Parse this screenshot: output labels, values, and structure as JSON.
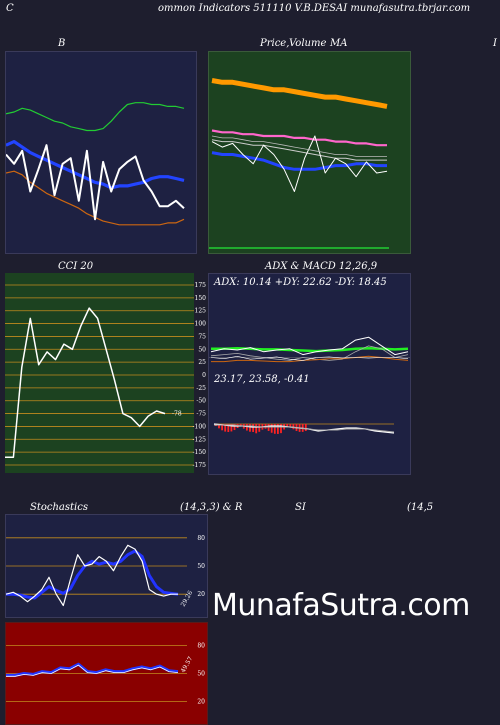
{
  "header": {
    "left_char": "C",
    "title": "ommon  Indicators 511110  V.B.DESAI munafasutra.tbrjar.com"
  },
  "panels": {
    "bb": {
      "title": "B"
    },
    "price": {
      "title_a": "Price,",
      "title_b": "Volume",
      "title_c": "MA",
      "right_edge": "I"
    },
    "cci": {
      "title": "CCI 20",
      "value_label": "-78"
    },
    "adx": {
      "title": "ADX  & MACD 12,26,9",
      "adx_text": "ADX: 10.14  +DY: 22.62  -DY: 18.45",
      "macd_text": "23.17,  23.58,  -0.41"
    },
    "stoch": {
      "title_a": "Stochastics",
      "title_b": "(14,3,3) & R",
      "title_c": "SI",
      "title_d": "(14,5",
      "value_label": "29.26"
    },
    "rsi": {
      "value_label": "49.57"
    }
  },
  "brand": {
    "text": "MunafaSutra.com"
  },
  "chart_data": [
    {
      "id": "bollinger",
      "type": "line",
      "ylim": [
        0,
        100
      ],
      "series": [
        {
          "values": [
            72,
            73,
            75,
            74,
            72,
            70,
            68,
            67,
            65,
            64,
            63,
            63,
            64,
            68,
            73,
            77,
            78,
            78,
            77,
            77,
            76,
            76,
            75
          ]
        },
        {
          "values": [
            55,
            57,
            54,
            51,
            49,
            47,
            45,
            43,
            41,
            39,
            37,
            35,
            34,
            32,
            33,
            33,
            34,
            35,
            37,
            38,
            38,
            37,
            36
          ]
        },
        {
          "values": [
            40,
            41,
            39,
            35,
            32,
            29,
            27,
            25,
            23,
            21,
            18,
            16,
            14,
            13,
            12,
            12,
            12,
            12,
            12,
            12,
            13,
            13,
            15
          ]
        },
        {
          "values": [
            50,
            45,
            52,
            30,
            42,
            55,
            28,
            45,
            48,
            25,
            52,
            15,
            46,
            30,
            42,
            46,
            49,
            36,
            30,
            22,
            22,
            25,
            21
          ]
        }
      ]
    },
    {
      "id": "price_volume_ma",
      "type": "line",
      "ylim": [
        0,
        100
      ],
      "series": [
        {
          "values": [
            90,
            89,
            89,
            88,
            87,
            86,
            85,
            85,
            84,
            83,
            82,
            81,
            81,
            80,
            79,
            78,
            77,
            76
          ]
        },
        {
          "values": [
            63,
            62,
            62,
            61,
            61,
            60,
            60,
            60,
            59,
            59,
            58,
            58,
            57,
            57,
            56,
            56,
            55,
            55
          ]
        },
        {
          "values": [
            58,
            57,
            57,
            56,
            55,
            55,
            54,
            53,
            52,
            51,
            50,
            49,
            48,
            48,
            47,
            47,
            47,
            47
          ]
        },
        {
          "values": [
            51,
            50,
            50,
            49,
            48,
            47,
            45,
            43,
            42,
            42,
            42,
            43,
            44,
            44,
            45,
            45,
            44,
            44
          ]
        },
        {
          "values": [
            57,
            54,
            56,
            50,
            45,
            55,
            50,
            42,
            30,
            48,
            60,
            40,
            48,
            45,
            38,
            46,
            40,
            41
          ]
        }
      ]
    },
    {
      "id": "cci",
      "type": "line",
      "ylim": [
        -175,
        175
      ],
      "ticks": [
        "175",
        "150",
        "125",
        "100",
        "75",
        "50",
        "25",
        "0",
        "-25",
        "-50",
        "-75",
        "-100",
        "-125",
        "-150",
        "-175"
      ],
      "values": [
        -160,
        -160,
        15,
        110,
        20,
        45,
        30,
        60,
        50,
        95,
        130,
        110,
        50,
        -10,
        -75,
        -83,
        -100,
        -80,
        -70,
        -75
      ]
    },
    {
      "id": "adx",
      "type": "line",
      "ylim": [
        0,
        100
      ],
      "series": [
        {
          "values": [
            40,
            40,
            41,
            40,
            39,
            39,
            38,
            37,
            36,
            37,
            38,
            40,
            41,
            40,
            39,
            40
          ]
        },
        {
          "values": [
            35,
            40,
            38,
            42,
            35,
            38,
            40,
            30,
            35,
            38,
            40,
            55,
            60,
            45,
            30,
            35
          ]
        },
        {
          "values": [
            28,
            30,
            32,
            28,
            25,
            22,
            20,
            25,
            22,
            20,
            22,
            35,
            45,
            40,
            25,
            30
          ]
        },
        {
          "values": [
            18,
            18,
            20,
            20,
            19,
            18,
            18,
            20,
            21,
            23,
            23,
            25,
            27,
            25,
            22,
            20
          ]
        },
        {
          "values": [
            25,
            23,
            27,
            22,
            24,
            26,
            22,
            20,
            25,
            26,
            24,
            25,
            24,
            25,
            25,
            23
          ]
        }
      ]
    },
    {
      "id": "macd",
      "type": "bar",
      "series": [
        {
          "name": "macd",
          "values": [
            23.17
          ]
        },
        {
          "name": "signal",
          "values": [
            23.58
          ]
        },
        {
          "name": "hist",
          "values": [
            -0.41
          ]
        }
      ]
    },
    {
      "id": "stochastics",
      "type": "line",
      "ylim": [
        0,
        100
      ],
      "ticks": [
        "80",
        "50",
        "20"
      ],
      "series": [
        {
          "values": [
            20,
            22,
            18,
            12,
            18,
            25,
            38,
            20,
            8,
            36,
            62,
            50,
            52,
            60,
            55,
            45,
            60,
            72,
            68,
            55,
            25,
            20,
            18,
            20,
            20
          ]
        },
        {
          "values": [
            20,
            20,
            19,
            17,
            16,
            22,
            28,
            24,
            21,
            26,
            40,
            50,
            55,
            52,
            54,
            52,
            55,
            62,
            66,
            60,
            40,
            28,
            22,
            21,
            20
          ]
        }
      ]
    },
    {
      "id": "rsi",
      "type": "line",
      "ylim": [
        0,
        100
      ],
      "ticks": [
        "80",
        "50",
        "20"
      ],
      "values": [
        48,
        48,
        50,
        49,
        52,
        51,
        56,
        55,
        60,
        52,
        51,
        54,
        52,
        52,
        55,
        57,
        55,
        58,
        53,
        52
      ]
    }
  ]
}
